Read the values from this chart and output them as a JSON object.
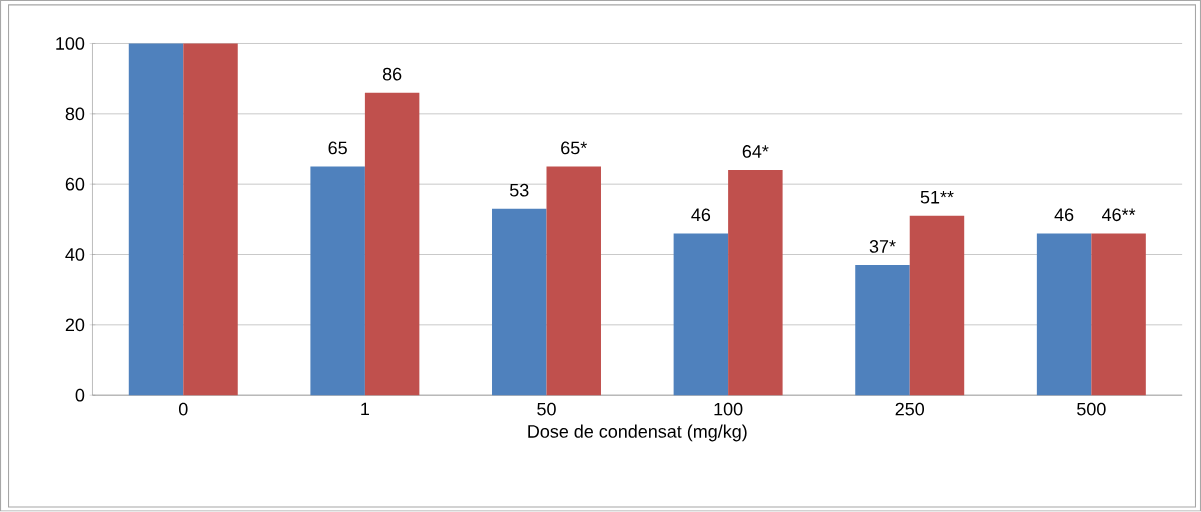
{
  "chart_data": {
    "type": "bar",
    "xlabel": "Dose de condensat (mg/kg)",
    "categories": [
      "0",
      "1",
      "50",
      "100",
      "250",
      "500"
    ],
    "series": [
      {
        "color": "#4f81bd",
        "values": [
          100,
          65,
          53,
          46,
          37,
          46
        ],
        "value_labels": [
          null,
          "65",
          "53",
          "46",
          "37*",
          "46"
        ]
      },
      {
        "color": "#c0504d",
        "values": [
          100,
          86,
          65,
          64,
          51,
          46
        ],
        "value_labels": [
          null,
          "86",
          "65*",
          "64*",
          "51**",
          "46**"
        ]
      }
    ],
    "ylim": [
      0,
      100
    ],
    "yticks": [
      0,
      20,
      40,
      60,
      80,
      100
    ],
    "grid": "y"
  }
}
